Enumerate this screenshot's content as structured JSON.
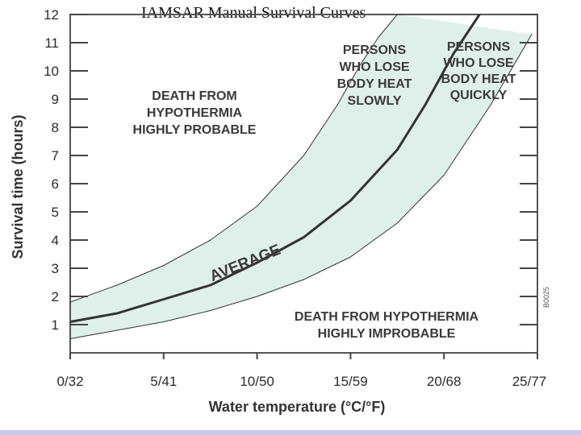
{
  "title": "IAMSAR Manual Survival Curves",
  "chart_data": {
    "type": "area",
    "title": "IAMSAR Manual Survival Curves",
    "xlabel": "Water temperature (°C/°F)",
    "ylabel": "Survival time (hours)",
    "xlim": [
      0,
      25
    ],
    "ylim": [
      0,
      12
    ],
    "x_ticks": [
      0,
      5,
      10,
      15,
      20,
      25
    ],
    "x_tick_labels": [
      "0/32",
      "5/41",
      "10/50",
      "15/59",
      "20/68",
      "25/77"
    ],
    "y_ticks": [
      1,
      2,
      3,
      4,
      5,
      6,
      7,
      8,
      9,
      10,
      11,
      12
    ],
    "y_tick_labels": [
      "1",
      "2",
      "3",
      "4",
      "5",
      "6",
      "7",
      "8",
      "9",
      "10",
      "11",
      "12"
    ],
    "grid": false,
    "series": [
      {
        "name": "PERSONS WHO LOSE BODY HEAT QUICKLY",
        "x": [
          0,
          2.5,
          5,
          7.5,
          10,
          12.5,
          15,
          17.5,
          20,
          22.5,
          24.7
        ],
        "y": [
          0.5,
          0.8,
          1.1,
          1.5,
          2.0,
          2.6,
          3.4,
          4.6,
          6.3,
          8.8,
          11.3
        ]
      },
      {
        "name": "AVERAGE",
        "x": [
          0,
          2.5,
          5,
          7.5,
          10,
          12.5,
          15,
          17.5,
          19,
          20.5,
          21.9
        ],
        "y": [
          1.1,
          1.4,
          1.9,
          2.4,
          3.2,
          4.1,
          5.4,
          7.2,
          8.8,
          10.6,
          12.0
        ]
      },
      {
        "name": "PERSONS WHO LOSE BODY HEAT SLOWLY",
        "x": [
          0,
          2.5,
          5,
          7.5,
          10,
          12.5,
          14.3,
          15.5,
          16.5,
          17.5
        ],
        "y": [
          1.8,
          2.4,
          3.1,
          4.0,
          5.2,
          7.0,
          8.8,
          10.2,
          11.2,
          12.0
        ]
      }
    ],
    "annotations": [
      {
        "lines": [
          "DEATH FROM",
          "HYPOTHERMIA",
          "HIGHLY PROBABLE"
        ]
      },
      {
        "lines": [
          "DEATH FROM HYPOTHERMIA",
          "HIGHLY IMPROBABLE"
        ]
      },
      {
        "lines": [
          "PERSONS",
          "WHO LOSE",
          "BODY HEAT",
          "SLOWLY"
        ]
      },
      {
        "lines": [
          "PERSONS",
          "WHO LOSE",
          "BODY HEAT",
          "QUICKLY"
        ]
      },
      {
        "lines": [
          "AVERAGE"
        ]
      }
    ],
    "figure_code": "B0025",
    "colors": {
      "band_fill": "#dff0ea",
      "plot_background": "#ffffff",
      "curve": "#333333",
      "frame": "#555555"
    }
  }
}
